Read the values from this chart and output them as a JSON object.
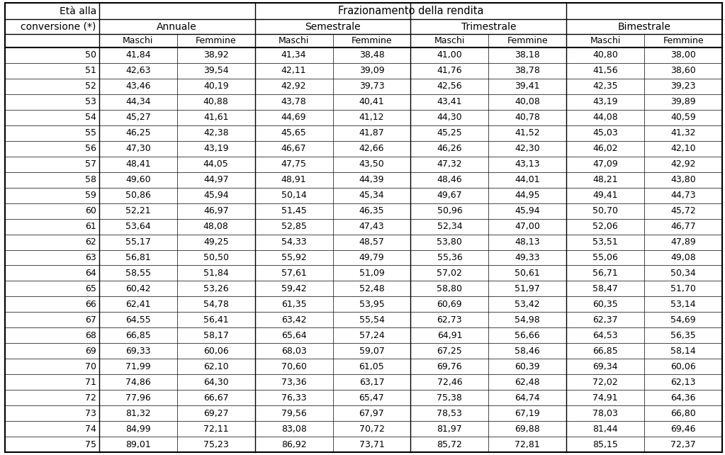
{
  "rows": [
    [
      50,
      "41,84",
      "38,92",
      "41,34",
      "38,48",
      "41,00",
      "38,18",
      "40,80",
      "38,00"
    ],
    [
      51,
      "42,63",
      "39,54",
      "42,11",
      "39,09",
      "41,76",
      "38,78",
      "41,56",
      "38,60"
    ],
    [
      52,
      "43,46",
      "40,19",
      "42,92",
      "39,73",
      "42,56",
      "39,41",
      "42,35",
      "39,23"
    ],
    [
      53,
      "44,34",
      "40,88",
      "43,78",
      "40,41",
      "43,41",
      "40,08",
      "43,19",
      "39,89"
    ],
    [
      54,
      "45,27",
      "41,61",
      "44,69",
      "41,12",
      "44,30",
      "40,78",
      "44,08",
      "40,59"
    ],
    [
      55,
      "46,25",
      "42,38",
      "45,65",
      "41,87",
      "45,25",
      "41,52",
      "45,03",
      "41,32"
    ],
    [
      56,
      "47,30",
      "43,19",
      "46,67",
      "42,66",
      "46,26",
      "42,30",
      "46,02",
      "42,10"
    ],
    [
      57,
      "48,41",
      "44,05",
      "47,75",
      "43,50",
      "47,32",
      "43,13",
      "47,09",
      "42,92"
    ],
    [
      58,
      "49,60",
      "44,97",
      "48,91",
      "44,39",
      "48,46",
      "44,01",
      "48,21",
      "43,80"
    ],
    [
      59,
      "50,86",
      "45,94",
      "50,14",
      "45,34",
      "49,67",
      "44,95",
      "49,41",
      "44,73"
    ],
    [
      60,
      "52,21",
      "46,97",
      "51,45",
      "46,35",
      "50,96",
      "45,94",
      "50,70",
      "45,72"
    ],
    [
      61,
      "53,64",
      "48,08",
      "52,85",
      "47,43",
      "52,34",
      "47,00",
      "52,06",
      "46,77"
    ],
    [
      62,
      "55,17",
      "49,25",
      "54,33",
      "48,57",
      "53,80",
      "48,13",
      "53,51",
      "47,89"
    ],
    [
      63,
      "56,81",
      "50,50",
      "55,92",
      "49,79",
      "55,36",
      "49,33",
      "55,06",
      "49,08"
    ],
    [
      64,
      "58,55",
      "51,84",
      "57,61",
      "51,09",
      "57,02",
      "50,61",
      "56,71",
      "50,34"
    ],
    [
      65,
      "60,42",
      "53,26",
      "59,42",
      "52,48",
      "58,80",
      "51,97",
      "58,47",
      "51,70"
    ],
    [
      66,
      "62,41",
      "54,78",
      "61,35",
      "53,95",
      "60,69",
      "53,42",
      "60,35",
      "53,14"
    ],
    [
      67,
      "64,55",
      "56,41",
      "63,42",
      "55,54",
      "62,73",
      "54,98",
      "62,37",
      "54,69"
    ],
    [
      68,
      "66,85",
      "58,17",
      "65,64",
      "57,24",
      "64,91",
      "56,66",
      "64,53",
      "56,35"
    ],
    [
      69,
      "69,33",
      "60,06",
      "68,03",
      "59,07",
      "67,25",
      "58,46",
      "66,85",
      "58,14"
    ],
    [
      70,
      "71,99",
      "62,10",
      "70,60",
      "61,05",
      "69,76",
      "60,39",
      "69,34",
      "60,06"
    ],
    [
      71,
      "74,86",
      "64,30",
      "73,36",
      "63,17",
      "72,46",
      "62,48",
      "72,02",
      "62,13"
    ],
    [
      72,
      "77,96",
      "66,67",
      "76,33",
      "65,47",
      "75,38",
      "64,74",
      "74,91",
      "64,36"
    ],
    [
      73,
      "81,32",
      "69,27",
      "79,56",
      "67,97",
      "78,53",
      "67,19",
      "78,03",
      "66,80"
    ],
    [
      74,
      "84,99",
      "72,11",
      "83,08",
      "70,72",
      "81,97",
      "69,88",
      "81,44",
      "69,46"
    ],
    [
      75,
      "89,01",
      "75,23",
      "86,92",
      "73,71",
      "85,72",
      "72,81",
      "85,15",
      "72,37"
    ]
  ],
  "bg_color": "#ffffff",
  "font_size": 9.0,
  "header_font_size": 10.0,
  "section_font_size": 10.5
}
